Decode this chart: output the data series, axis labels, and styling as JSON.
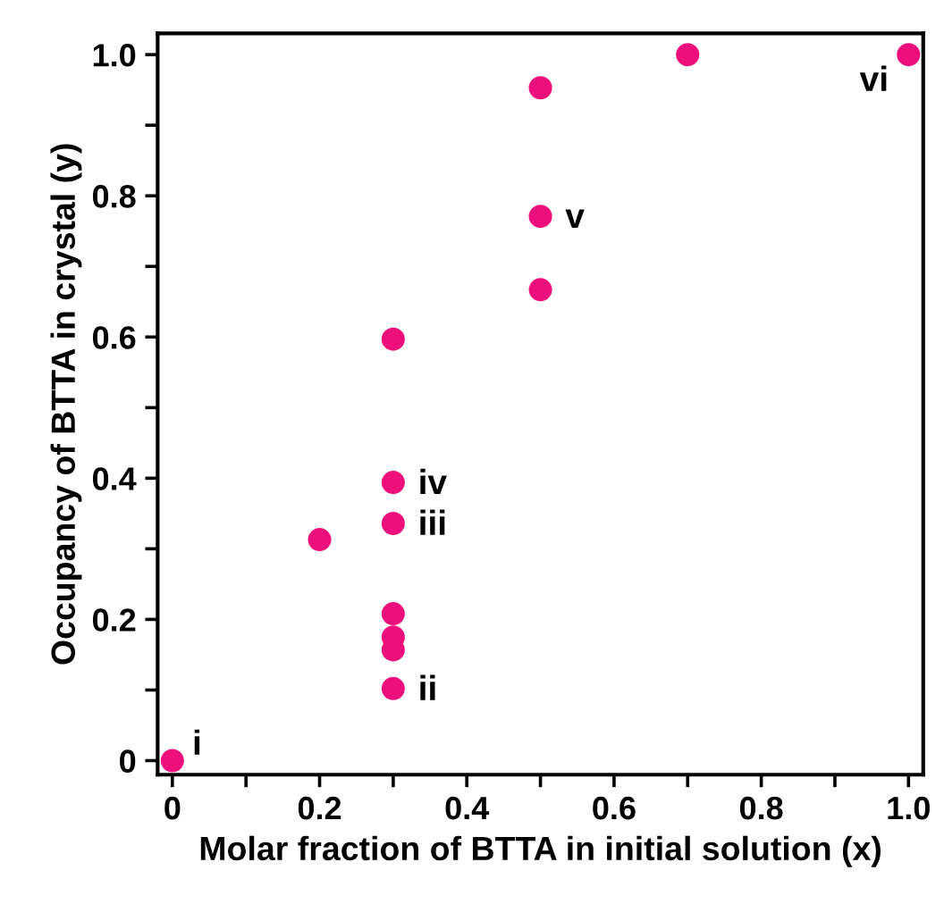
{
  "chart_data": {
    "type": "scatter",
    "xlabel": "Molar fraction of BTTA in initial solution (x)",
    "ylabel": "Occupancy of BTTA in crystal (y)",
    "series": [
      {
        "color": "#ec0f7c",
        "x": [
          0,
          0.2,
          0.3,
          0.3,
          0.3,
          0.3,
          0.3,
          0.3,
          0.3,
          0.5,
          0.5,
          0.5,
          0.7,
          1.0
        ],
        "values": [
          0,
          0.313,
          0.597,
          0.394,
          0.336,
          0.208,
          0.175,
          0.157,
          0.102,
          0.953,
          0.771,
          0.667,
          1.0,
          1.0
        ]
      }
    ],
    "marker": "circle",
    "xlim": [
      -0.02,
      1.02
    ],
    "ylim": [
      -0.02,
      1.03
    ],
    "xticks": [
      0,
      {
        "value": 0.1,
        "label": null
      },
      0.2,
      {
        "value": 0.3,
        "label": null
      },
      0.4,
      {
        "value": 0.5,
        "label": null
      },
      0.6,
      {
        "value": 0.7,
        "label": null
      },
      0.8,
      {
        "value": 0.9,
        "label": null
      },
      {
        "value": 1.0,
        "label": "1.0"
      }
    ],
    "yticks": [
      0,
      {
        "value": 0.1,
        "label": null
      },
      0.2,
      {
        "value": 0.3,
        "label": null
      },
      0.4,
      {
        "value": 0.5,
        "label": null
      },
      0.6,
      {
        "value": 0.7,
        "label": null
      },
      0.8,
      {
        "value": 0.9,
        "label": null
      },
      {
        "value": 1.0,
        "label": "1.0"
      }
    ],
    "grid": false,
    "legend": false,
    "annotations": [
      {
        "text": "i",
        "x": 0,
        "y": 0
      },
      {
        "text": "ii",
        "x": 0.3,
        "y": 0.102
      },
      {
        "text": "iii",
        "x": 0.3,
        "y": 0.336
      },
      {
        "text": "iv",
        "x": 0.3,
        "y": 0.394
      },
      {
        "text": "v",
        "x": 0.5,
        "y": 0.771
      },
      {
        "text": "vi",
        "x": 1.0,
        "y": 1.0
      }
    ]
  }
}
